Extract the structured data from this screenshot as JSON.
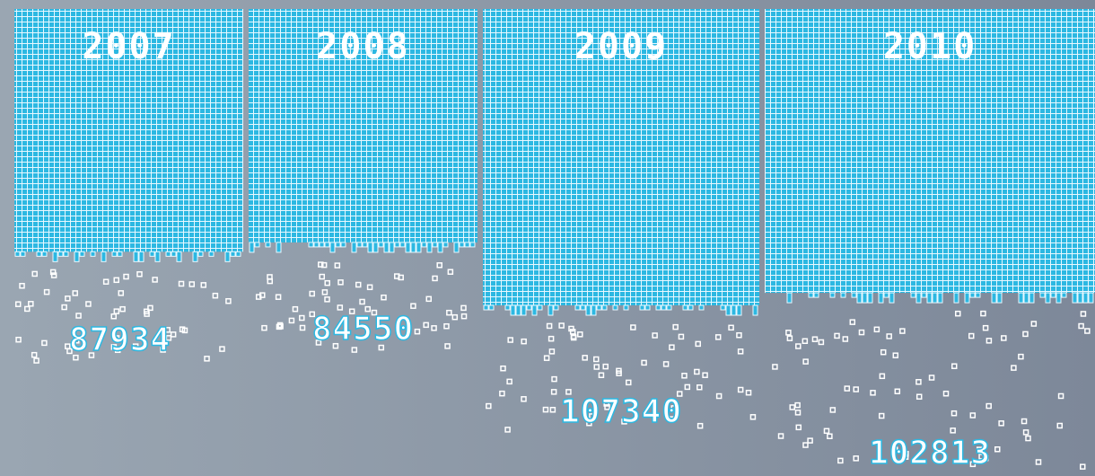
{
  "chart_data": {
    "type": "bar",
    "categories": [
      "2007",
      "2008",
      "2009",
      "2010"
    ],
    "values": [
      87934,
      84550,
      107340,
      102813
    ],
    "color": "#2cb8e2"
  }
}
